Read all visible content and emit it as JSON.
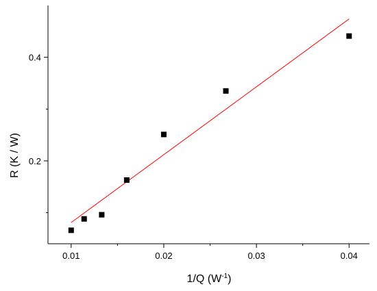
{
  "chart_data": {
    "type": "scatter",
    "title": "",
    "xlabel": {
      "prefix": "1/Q (W",
      "superscript": "-1",
      "suffix": ")"
    },
    "ylabel": "R (K / W)",
    "xlim": [
      0.0075,
      0.0422
    ],
    "ylim": [
      0.04,
      0.5
    ],
    "x_ticks": [
      0.01,
      0.02,
      0.03,
      0.04
    ],
    "x_tick_labels": [
      "0.01",
      "0.02",
      "0.03",
      "0.04"
    ],
    "x_minor_ticks": [
      0.015,
      0.025,
      0.035
    ],
    "y_ticks": [
      0.2,
      0.4
    ],
    "y_tick_labels": [
      "0.2",
      "0.4"
    ],
    "y_minor_ticks": [
      0.1,
      0.3
    ],
    "grid": false,
    "legend": "none",
    "series": [
      {
        "kind": "scatter",
        "marker": "square",
        "color": "#000000",
        "x": [
          0.01,
          0.0114,
          0.0133,
          0.016,
          0.02,
          0.0267,
          0.04
        ],
        "y": [
          0.066,
          0.088,
          0.096,
          0.163,
          0.251,
          0.335,
          0.441
        ]
      },
      {
        "kind": "line",
        "style": "linear fit",
        "color": "#ff0000",
        "x": [
          0.01,
          0.04
        ],
        "y": [
          0.081,
          0.474
        ]
      }
    ]
  }
}
